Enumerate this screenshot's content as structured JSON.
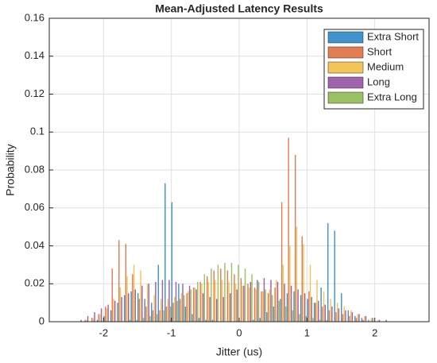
{
  "chart_data": {
    "type": "histogram",
    "title": "Mean-Adjusted Latency Results",
    "xlabel": "Jitter (us)",
    "ylabel": "Probability",
    "bins": [
      -2.5,
      -2.4,
      -2.3,
      -2.2,
      -2.1,
      -2.0,
      -1.9,
      -1.8,
      -1.7,
      -1.6,
      -1.5,
      -1.4,
      -1.3,
      -1.2,
      -1.1,
      -1.0,
      -0.9,
      -0.8,
      -0.7,
      -0.6,
      -0.5,
      -0.4,
      -0.3,
      -0.2,
      -0.1,
      0,
      0.1,
      0.2,
      0.3,
      0.4,
      0.5,
      0.6,
      0.7,
      0.8,
      0.9,
      1.0,
      1.1,
      1.2,
      1.3,
      1.4,
      1.5,
      1.6,
      1.7,
      1.8,
      1.9,
      2.0,
      2.1,
      2.2,
      2.3,
      2.4,
      2.5
    ],
    "series": [
      {
        "name": "Extra Short",
        "color": "#0072bd",
        "values": [
          0,
          0,
          0,
          0,
          0.001,
          0.003,
          0.006,
          0.01,
          0.014,
          0.016,
          0.015,
          0.012,
          0.01,
          0.03,
          0.073,
          0.063,
          0.02,
          0.008,
          0.004,
          0.002,
          0.001,
          0.001,
          0,
          0,
          0,
          0,
          0,
          0.001,
          0.002,
          0.005,
          0.008,
          0.012,
          0.015,
          0.016,
          0.014,
          0.012,
          0.01,
          0.018,
          0.052,
          0.048,
          0.015,
          0.006,
          0.003,
          0.002,
          0.001,
          0,
          0,
          0,
          0,
          0
        ]
      },
      {
        "name": "Short",
        "color": "#d95319",
        "values": [
          0,
          0,
          0.001,
          0.002,
          0.004,
          0.008,
          0.028,
          0.043,
          0.041,
          0.025,
          0.012,
          0.008,
          0.006,
          0.006,
          0.008,
          0.01,
          0.012,
          0.015,
          0.018,
          0.021,
          0.024,
          0.027,
          0.028,
          0.027,
          0.025,
          0.023,
          0.02,
          0.018,
          0.016,
          0.015,
          0.018,
          0.063,
          0.097,
          0.088,
          0.045,
          0.016,
          0.01,
          0.008,
          0.006,
          0.005,
          0.004,
          0.003,
          0.002,
          0.001,
          0,
          0,
          0,
          0,
          0,
          0
        ]
      },
      {
        "name": "Medium",
        "color": "#edb120",
        "values": [
          0,
          0,
          0.001,
          0.002,
          0.004,
          0.007,
          0.012,
          0.018,
          0.024,
          0.03,
          0.027,
          0.02,
          0.014,
          0.012,
          0.012,
          0.013,
          0.015,
          0.016,
          0.018,
          0.02,
          0.021,
          0.022,
          0.022,
          0.021,
          0.02,
          0.019,
          0.018,
          0.017,
          0.016,
          0.017,
          0.022,
          0.03,
          0.04,
          0.05,
          0.041,
          0.03,
          0.022,
          0.016,
          0.012,
          0.01,
          0.008,
          0.006,
          0.004,
          0.003,
          0.002,
          0.001,
          0,
          0,
          0,
          0
        ]
      },
      {
        "name": "Long",
        "color": "#7e2f8e",
        "values": [
          0,
          0.001,
          0.003,
          0.005,
          0.007,
          0.009,
          0.011,
          0.013,
          0.015,
          0.017,
          0.019,
          0.02,
          0.021,
          0.022,
          0.022,
          0.021,
          0.02,
          0.019,
          0.017,
          0.015,
          0.013,
          0.012,
          0.013,
          0.015,
          0.017,
          0.019,
          0.021,
          0.022,
          0.023,
          0.022,
          0.021,
          0.02,
          0.019,
          0.017,
          0.015,
          0.013,
          0.011,
          0.009,
          0.008,
          0.007,
          0.006,
          0.005,
          0.004,
          0.003,
          0.002,
          0.001,
          0.001,
          0,
          0,
          0
        ]
      },
      {
        "name": "Extra Long",
        "color": "#77ac30",
        "values": [
          0,
          0,
          0,
          0,
          0,
          0,
          0,
          0,
          0.001,
          0.001,
          0.002,
          0.003,
          0.004,
          0.006,
          0.008,
          0.011,
          0.014,
          0.017,
          0.021,
          0.025,
          0.028,
          0.03,
          0.031,
          0.031,
          0.03,
          0.028,
          0.025,
          0.021,
          0.017,
          0.014,
          0.011,
          0.008,
          0.006,
          0.004,
          0.003,
          0.002,
          0.001,
          0.001,
          0,
          0,
          0,
          0,
          0,
          0,
          0,
          0,
          0,
          0,
          0,
          0
        ]
      }
    ],
    "xlim": [
      -2.8,
      2.8
    ],
    "xticks": [
      -2,
      -1,
      0,
      1,
      2
    ],
    "ylim": [
      0,
      0.16
    ],
    "yticks": [
      0,
      0.02,
      0.04,
      0.06,
      0.08,
      0.1,
      0.12,
      0.14,
      0.16
    ],
    "grid": true,
    "legend": "top-right"
  }
}
